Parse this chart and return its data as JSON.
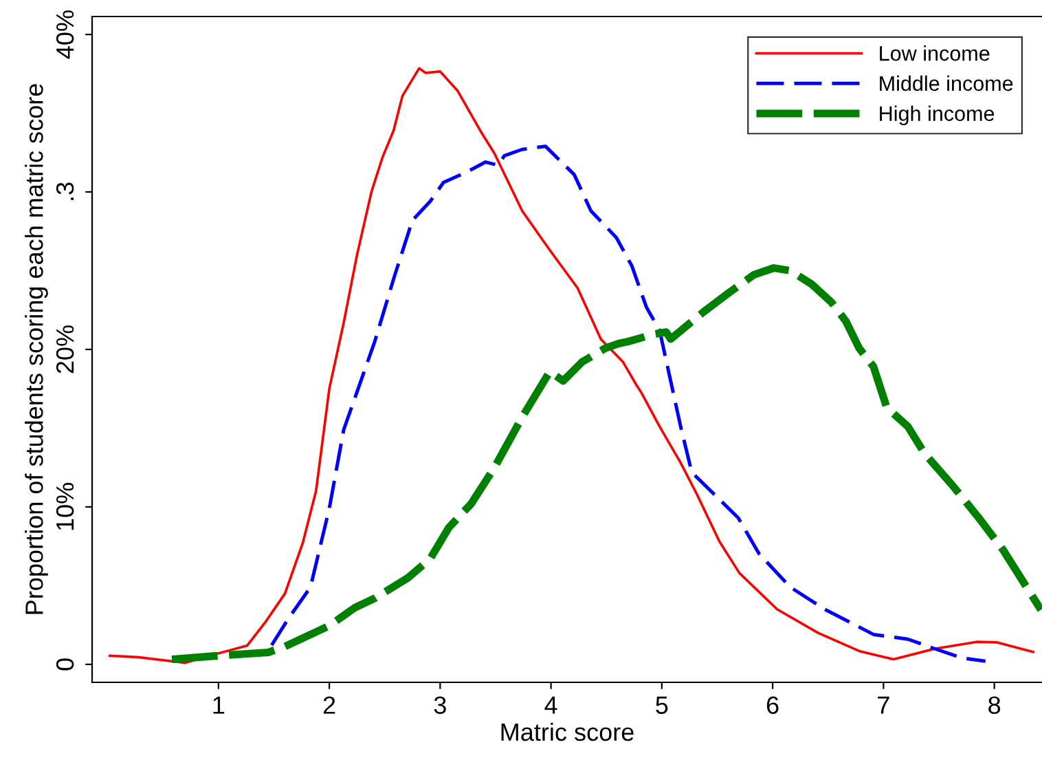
{
  "chart_data": {
    "type": "line",
    "xlabel": "Matric score",
    "ylabel": "Proportion of students scoring each matric score",
    "xlim": [
      -0.14,
      8.43
    ],
    "ylim": [
      -0.0114,
      0.4114
    ],
    "xticks": [
      1,
      2,
      3,
      4,
      5,
      6,
      7,
      8
    ],
    "yticks": [
      {
        "value": 0,
        "label": "0"
      },
      {
        "value": 0.1,
        "label": "10%"
      },
      {
        "value": 0.2,
        "label": "20%"
      },
      {
        "value": 0.3,
        "label": ".3"
      },
      {
        "value": 0.4,
        "label": "40%"
      }
    ],
    "grid": false,
    "legend": "top right",
    "series": [
      {
        "name": "Low income",
        "color": "#ff0000",
        "line_style": "solid",
        "x": [
          0.02,
          0.27,
          0.7,
          1.0,
          1.26,
          1.42,
          1.6,
          1.76,
          1.88,
          2.0,
          2.13,
          2.25,
          2.38,
          2.48,
          2.58,
          2.66,
          2.81,
          2.87,
          3.0,
          3.16,
          3.37,
          3.49,
          3.74,
          3.99,
          4.24,
          4.45,
          4.65,
          4.77,
          4.82,
          4.98,
          5.17,
          5.32,
          5.52,
          5.7,
          6.04,
          6.41,
          6.78,
          7.09,
          7.46,
          7.84,
          8.02,
          8.35
        ],
        "values": [
          0.0055,
          0.0046,
          0.001,
          0.007,
          0.012,
          0.0265,
          0.045,
          0.077,
          0.11,
          0.175,
          0.217,
          0.26,
          0.3,
          0.322,
          0.339,
          0.361,
          0.3785,
          0.3756,
          0.3765,
          0.364,
          0.338,
          0.3245,
          0.288,
          0.263,
          0.239,
          0.2066,
          0.192,
          0.1775,
          0.172,
          0.151,
          0.128,
          0.1075,
          0.078,
          0.058,
          0.035,
          0.02,
          0.0085,
          0.0032,
          0.0099,
          0.0143,
          0.014,
          0.0079
        ]
      },
      {
        "name": "Middle income",
        "color": "#0000ff",
        "line_style": "dashed",
        "x": [
          1.48,
          1.63,
          1.83,
          2.0,
          2.13,
          2.41,
          2.59,
          2.75,
          2.91,
          3.03,
          3.25,
          3.41,
          3.52,
          3.58,
          3.74,
          3.95,
          4.21,
          4.36,
          4.59,
          4.73,
          4.86,
          4.98,
          5.17,
          5.27,
          5.69,
          5.88,
          6.16,
          6.47,
          6.91,
          7.22,
          7.46,
          7.71,
          7.92
        ],
        "values": [
          0.0122,
          0.029,
          0.049,
          0.099,
          0.149,
          0.205,
          0.247,
          0.282,
          0.294,
          0.306,
          0.313,
          0.319,
          0.317,
          0.323,
          0.327,
          0.329,
          0.311,
          0.288,
          0.271,
          0.253,
          0.227,
          0.212,
          0.151,
          0.122,
          0.093,
          0.07,
          0.049,
          0.035,
          0.019,
          0.016,
          0.01,
          0.004,
          0.002
        ]
      },
      {
        "name": "High income",
        "color": "#008000",
        "line_style": "dashed",
        "x": [
          0.58,
          1.0,
          1.45,
          1.6,
          1.82,
          2.0,
          2.23,
          2.41,
          2.71,
          2.91,
          3.08,
          3.28,
          3.49,
          3.74,
          3.99,
          4.11,
          4.28,
          4.49,
          4.61,
          4.7,
          4.92,
          5.04,
          5.08,
          5.23,
          5.38,
          5.6,
          5.83,
          6.01,
          6.16,
          6.35,
          6.53,
          6.66,
          6.78,
          6.91,
          7.03,
          7.22,
          7.37,
          7.63,
          7.86,
          8.08,
          8.42
        ],
        "values": [
          0.0032,
          0.0055,
          0.0076,
          0.0114,
          0.0186,
          0.0245,
          0.036,
          0.042,
          0.055,
          0.067,
          0.087,
          0.102,
          0.125,
          0.157,
          0.186,
          0.18,
          0.192,
          0.2008,
          0.2037,
          0.2051,
          0.2095,
          0.211,
          0.2066,
          0.2153,
          0.224,
          0.2357,
          0.2474,
          0.2517,
          0.25,
          0.2415,
          0.23,
          0.218,
          0.2008,
          0.189,
          0.163,
          0.151,
          0.134,
          0.113,
          0.093,
          0.0726,
          0.0347
        ]
      }
    ]
  }
}
